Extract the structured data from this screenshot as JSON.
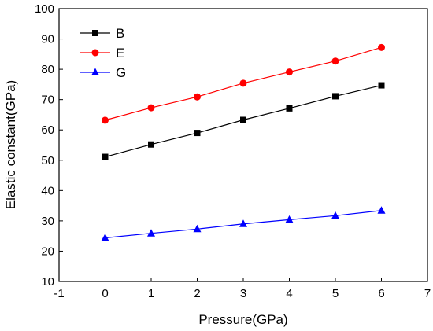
{
  "chart_data": {
    "type": "line",
    "title": "",
    "xlabel": "Pressure(GPa)",
    "ylabel": "Elastic constant(GPa)",
    "xlim": [
      -1,
      7
    ],
    "ylim": [
      10,
      100
    ],
    "xticks": [
      -1,
      0,
      1,
      2,
      3,
      4,
      5,
      6,
      7
    ],
    "yticks": [
      10,
      20,
      30,
      40,
      50,
      60,
      70,
      80,
      90,
      100
    ],
    "grid": false,
    "legend_position": "top-left",
    "x": [
      0,
      1,
      2,
      3,
      4,
      5,
      6
    ],
    "series": [
      {
        "name": "B",
        "color": "#000000",
        "marker": "square",
        "values": [
          51.1,
          55.2,
          59.0,
          63.3,
          67.1,
          71.1,
          74.7
        ]
      },
      {
        "name": "E",
        "color": "#ff0000",
        "marker": "circle",
        "values": [
          63.2,
          67.3,
          70.9,
          75.4,
          79.1,
          82.7,
          87.2
        ]
      },
      {
        "name": "G",
        "color": "#0000ff",
        "marker": "triangle",
        "values": [
          24.4,
          25.9,
          27.3,
          29.0,
          30.4,
          31.7,
          33.4
        ]
      }
    ]
  }
}
